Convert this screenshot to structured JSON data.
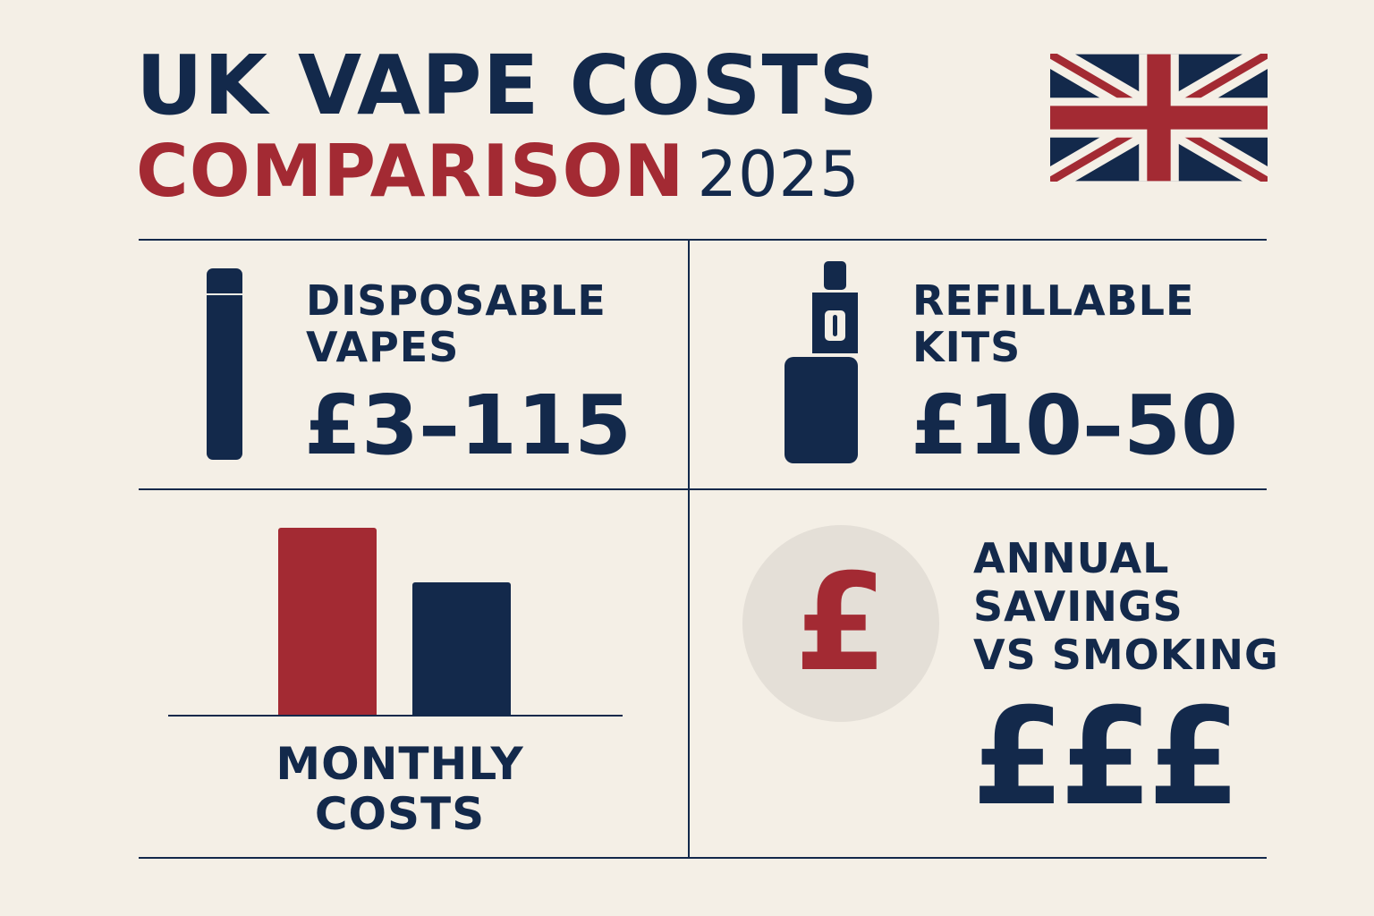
{
  "title": {
    "line1": "UK VAPE COSTS",
    "line2": "COMPARISON",
    "year": "2025"
  },
  "colors": {
    "navy": "#13294b",
    "red": "#a32a33",
    "background": "#f4efe6",
    "circle": "#e4dfd7"
  },
  "flag": {
    "icon": "union-jack-flag"
  },
  "disposable": {
    "icon": "disposable-vape-icon",
    "label_line1": "DISPOSABLE",
    "label_line2": "VAPES",
    "price": "£3–115"
  },
  "refillable": {
    "icon": "refillable-vape-kit-icon",
    "label_line1": "REFILLABLE",
    "label_line2": "KITS",
    "price": "£10–50"
  },
  "monthly": {
    "label_line1": "MONTHLY",
    "label_line2": "COSTS",
    "bars": [
      {
        "color": "#a32a33",
        "relative_level": 1.0
      },
      {
        "color": "#13294b",
        "relative_level": 0.71
      }
    ]
  },
  "savings": {
    "icon": "pound-coin-icon",
    "icon_glyph": "£",
    "label_line1": "ANNUAL",
    "label_line2": "SAVINGS",
    "label_line3": "VS SMOKING",
    "value": "£££"
  }
}
